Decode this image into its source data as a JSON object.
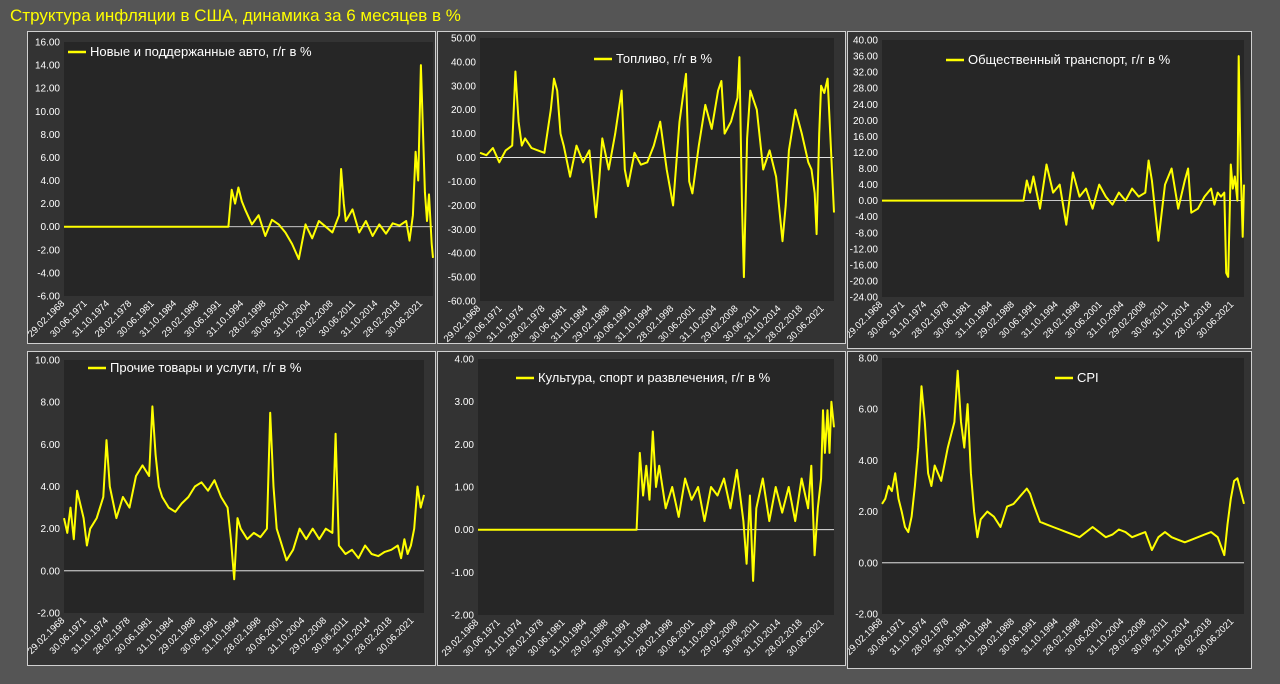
{
  "page_title": "Структура инфляции в США, динамика за 6 месяцев в %",
  "colors": {
    "background": "#555555",
    "panel": "#333333",
    "line": "#ffff00",
    "text": "#ffffff",
    "title": "#ffff00"
  },
  "chart_data": [
    {
      "type": "line",
      "legend": "Новые и поддержанные авто, г/г в %",
      "yticks": [
        -6,
        -4,
        -2,
        0,
        2,
        4,
        6,
        8,
        10,
        12,
        14,
        16
      ],
      "ylim": [
        -6,
        16
      ],
      "xticks": [
        "29.02.1968",
        "30.06.1971",
        "31.10.1974",
        "28.02.1978",
        "30.06.1981",
        "31.10.1984",
        "29.02.1988",
        "30.06.1991",
        "31.10.1994",
        "28.02.1998",
        "30.06.2001",
        "31.10.2004",
        "29.02.2008",
        "30.06.2011",
        "31.10.2014",
        "28.02.2018",
        "30.06.2021"
      ],
      "x": [
        1968.0,
        1992.5,
        1993.0,
        1993.5,
        1994.0,
        1994.5,
        1995.0,
        1996.0,
        1997.0,
        1998.0,
        1999.0,
        2000.0,
        2001.0,
        2002.0,
        2003.0,
        2004.0,
        2005.0,
        2006.0,
        2007.0,
        2008.0,
        2009.0,
        2009.3,
        2009.7,
        2010.0,
        2011.0,
        2012.0,
        2013.0,
        2014.0,
        2015.0,
        2016.0,
        2017.0,
        2018.0,
        2019.0,
        2019.5,
        2020.0,
        2020.4,
        2020.8,
        2021.2,
        2021.5,
        2021.8,
        2022.1,
        2022.4,
        2022.8,
        2023.0
      ],
      "y": [
        0.0,
        0.0,
        3.2,
        2.0,
        3.4,
        2.2,
        1.5,
        0.2,
        1.0,
        -0.8,
        0.6,
        0.2,
        -0.5,
        -1.5,
        -2.8,
        0.2,
        -1.0,
        0.5,
        0.0,
        -0.5,
        1.0,
        5.0,
        2.0,
        0.5,
        1.5,
        -0.5,
        0.5,
        -0.8,
        0.2,
        -0.6,
        0.3,
        0.1,
        0.5,
        -1.2,
        1.0,
        6.5,
        4.0,
        14.0,
        8.5,
        3.0,
        0.5,
        2.8,
        -1.5,
        -2.7
      ]
    },
    {
      "type": "line",
      "legend": "Топливо, г/г в %",
      "yticks": [
        -60,
        -50,
        -40,
        -30,
        -20,
        -10,
        0,
        10,
        20,
        30,
        40,
        50
      ],
      "ylim": [
        -60,
        50
      ],
      "xticks": [
        "29.02.1968",
        "30.06.1971",
        "31.10.1974",
        "28.02.1978",
        "30.06.1981",
        "31.10.1984",
        "29.02.1988",
        "30.06.1991",
        "31.10.1994",
        "28.02.1998",
        "30.06.2001",
        "31.10.2004",
        "29.02.2008",
        "30.06.2011",
        "31.10.2014",
        "28.02.2018",
        "30.06.2021"
      ],
      "x": [
        1968.0,
        1969.0,
        1970.0,
        1971.0,
        1972.0,
        1973.0,
        1973.5,
        1974.0,
        1974.5,
        1975.0,
        1976.0,
        1977.0,
        1978.0,
        1979.0,
        1979.5,
        1980.0,
        1980.5,
        1981.0,
        1982.0,
        1983.0,
        1984.0,
        1985.0,
        1986.0,
        1986.5,
        1987.0,
        1988.0,
        1989.0,
        1990.0,
        1990.5,
        1991.0,
        1992.0,
        1993.0,
        1994.0,
        1995.0,
        1996.0,
        1997.0,
        1998.0,
        1999.0,
        2000.0,
        2000.5,
        2001.0,
        2002.0,
        2003.0,
        2004.0,
        2005.0,
        2005.5,
        2006.0,
        2007.0,
        2008.0,
        2008.3,
        2008.7,
        2009.0,
        2009.5,
        2010.0,
        2011.0,
        2012.0,
        2013.0,
        2014.0,
        2015.0,
        2015.5,
        2016.0,
        2017.0,
        2018.0,
        2019.0,
        2019.5,
        2020.0,
        2020.3,
        2020.7,
        2021.0,
        2021.5,
        2022.0,
        2022.5,
        2023.0
      ],
      "y": [
        2.0,
        1.0,
        4.0,
        -2.0,
        3.0,
        5.0,
        36.0,
        15.0,
        5.0,
        8.0,
        4.0,
        3.0,
        2.0,
        20.0,
        33.0,
        28.0,
        10.0,
        5.0,
        -8.0,
        5.0,
        -2.0,
        3.0,
        -25.0,
        -10.0,
        8.0,
        -5.0,
        10.0,
        28.0,
        -5.0,
        -12.0,
        2.0,
        -3.0,
        -2.0,
        5.0,
        15.0,
        -5.0,
        -20.0,
        15.0,
        35.0,
        -10.0,
        -15.0,
        5.0,
        22.0,
        12.0,
        28.0,
        32.0,
        10.0,
        15.0,
        25.0,
        42.0,
        -20.0,
        -50.0,
        8.0,
        28.0,
        20.0,
        -5.0,
        3.0,
        -8.0,
        -35.0,
        -20.0,
        3.0,
        20.0,
        10.0,
        -2.0,
        -5.0,
        -15.0,
        -32.0,
        10.0,
        30.0,
        27.0,
        33.0,
        5.0,
        -23.0
      ]
    },
    {
      "type": "line",
      "legend": "Общественный транспорт, г/г в %",
      "yticks": [
        -24,
        -20,
        -16,
        -12,
        -8,
        -4,
        0,
        4,
        8,
        12,
        16,
        20,
        24,
        28,
        32,
        36,
        40
      ],
      "ylim": [
        -24,
        40
      ],
      "xticks": [
        "29.02.1968",
        "30.06.1971",
        "31.10.1974",
        "28.02.1978",
        "30.06.1981",
        "31.10.1984",
        "29.02.1988",
        "30.06.1991",
        "31.10.1994",
        "28.02.1998",
        "30.06.2001",
        "31.10.2004",
        "29.02.2008",
        "30.06.2011",
        "31.10.2014",
        "28.02.2018",
        "30.06.2021"
      ],
      "x": [
        1968.0,
        1989.5,
        1990.0,
        1990.5,
        1991.0,
        1992.0,
        1993.0,
        1994.0,
        1995.0,
        1996.0,
        1997.0,
        1998.0,
        1999.0,
        2000.0,
        2001.0,
        2002.0,
        2003.0,
        2004.0,
        2005.0,
        2006.0,
        2007.0,
        2008.0,
        2008.5,
        2009.0,
        2010.0,
        2011.0,
        2012.0,
        2013.0,
        2014.0,
        2014.5,
        2015.0,
        2016.0,
        2017.0,
        2018.0,
        2018.5,
        2019.0,
        2019.5,
        2020.0,
        2020.3,
        2020.6,
        2021.0,
        2021.3,
        2021.6,
        2022.0,
        2022.2,
        2022.5,
        2022.8,
        2023.0
      ],
      "y": [
        0.0,
        0.0,
        5.0,
        2.0,
        6.0,
        -2.0,
        9.0,
        2.0,
        4.0,
        -6.0,
        7.0,
        1.0,
        3.0,
        -2.0,
        4.0,
        1.0,
        -1.0,
        2.0,
        0.0,
        3.0,
        1.0,
        2.0,
        10.0,
        5.0,
        -10.0,
        4.0,
        8.0,
        -2.0,
        5.0,
        8.0,
        -3.0,
        -2.0,
        1.0,
        3.0,
        -1.0,
        2.0,
        1.0,
        2.0,
        -18.0,
        -19.0,
        9.0,
        3.0,
        6.0,
        0.0,
        36.0,
        8.0,
        -9.0,
        4.0
      ]
    },
    {
      "type": "line",
      "legend": "Прочие товары и услуги, г/г в %",
      "yticks": [
        -2,
        0,
        2,
        4,
        6,
        8,
        10
      ],
      "ylim": [
        -2,
        10
      ],
      "xticks": [
        "29.02.1968",
        "30.06.1971",
        "31.10.1974",
        "28.02.1978",
        "30.06.1981",
        "31.10.1984",
        "29.02.1988",
        "30.06.1991",
        "31.10.1994",
        "28.02.1998",
        "30.06.2001",
        "31.10.2004",
        "29.02.2008",
        "30.06.2011",
        "31.10.2014",
        "28.02.2018",
        "30.06.2021"
      ],
      "x": [
        1968.0,
        1968.5,
        1969.0,
        1969.5,
        1970.0,
        1971.0,
        1971.5,
        1972.0,
        1973.0,
        1974.0,
        1974.5,
        1975.0,
        1976.0,
        1977.0,
        1978.0,
        1979.0,
        1980.0,
        1981.0,
        1981.5,
        1982.0,
        1982.5,
        1983.0,
        1984.0,
        1985.0,
        1986.0,
        1987.0,
        1988.0,
        1989.0,
        1990.0,
        1991.0,
        1992.0,
        1993.0,
        1993.5,
        1994.0,
        1994.5,
        1995.0,
        1996.0,
        1997.0,
        1998.0,
        1999.0,
        1999.5,
        2000.0,
        2000.5,
        2001.0,
        2002.0,
        2003.0,
        2004.0,
        2005.0,
        2006.0,
        2007.0,
        2008.0,
        2009.0,
        2009.5,
        2010.0,
        2011.0,
        2012.0,
        2013.0,
        2014.0,
        2015.0,
        2016.0,
        2017.0,
        2018.0,
        2019.0,
        2019.5,
        2020.0,
        2020.5,
        2021.0,
        2021.5,
        2022.0,
        2022.5,
        2023.0
      ],
      "y": [
        2.5,
        1.8,
        3.0,
        1.5,
        3.8,
        2.5,
        1.2,
        2.0,
        2.5,
        3.5,
        6.2,
        4.0,
        2.5,
        3.5,
        3.0,
        4.5,
        5.0,
        4.5,
        7.8,
        5.5,
        4.0,
        3.5,
        3.0,
        2.8,
        3.2,
        3.5,
        4.0,
        4.2,
        3.8,
        4.3,
        3.5,
        3.0,
        1.5,
        -0.4,
        2.5,
        2.0,
        1.5,
        1.8,
        1.6,
        2.0,
        7.5,
        4.0,
        2.0,
        1.5,
        0.5,
        1.0,
        2.0,
        1.5,
        2.0,
        1.5,
        2.0,
        1.8,
        6.5,
        1.2,
        0.8,
        1.0,
        0.6,
        1.2,
        0.8,
        0.7,
        0.9,
        1.0,
        1.2,
        0.6,
        1.5,
        0.8,
        1.2,
        2.0,
        4.0,
        3.0,
        3.6
      ]
    },
    {
      "type": "line",
      "legend": "Культура, спорт и развлечения, г/г в %",
      "yticks": [
        -2,
        -1,
        0,
        1,
        2,
        3,
        4
      ],
      "ylim": [
        -2,
        4
      ],
      "xticks": [
        "29.02.1968",
        "30.06.1971",
        "31.10.1974",
        "28.02.1978",
        "30.06.1981",
        "31.10.1984",
        "29.02.1988",
        "30.06.1991",
        "31.10.1994",
        "28.02.1998",
        "30.06.2001",
        "31.10.2004",
        "29.02.2008",
        "30.06.2011",
        "31.10.2014",
        "28.02.2018",
        "30.06.2021"
      ],
      "x": [
        1968.0,
        1992.5,
        1993.0,
        1993.5,
        1994.0,
        1994.5,
        1995.0,
        1995.5,
        1996.0,
        1997.0,
        1998.0,
        1999.0,
        2000.0,
        2001.0,
        2002.0,
        2003.0,
        2004.0,
        2005.0,
        2006.0,
        2007.0,
        2008.0,
        2009.0,
        2009.5,
        2010.0,
        2010.5,
        2011.0,
        2012.0,
        2013.0,
        2014.0,
        2015.0,
        2016.0,
        2017.0,
        2018.0,
        2019.0,
        2019.5,
        2020.0,
        2020.5,
        2021.0,
        2021.3,
        2021.6,
        2022.0,
        2022.3,
        2022.6,
        2023.0
      ],
      "y": [
        0.0,
        0.0,
        1.8,
        0.8,
        1.5,
        0.7,
        2.3,
        1.0,
        1.5,
        0.5,
        1.0,
        0.3,
        1.2,
        0.7,
        1.0,
        0.2,
        1.0,
        0.8,
        1.2,
        0.5,
        1.4,
        0.2,
        -0.8,
        0.8,
        -1.2,
        0.5,
        1.2,
        0.2,
        1.0,
        0.4,
        1.0,
        0.2,
        1.2,
        0.5,
        1.5,
        -0.6,
        0.5,
        1.2,
        2.8,
        1.8,
        2.8,
        1.8,
        3.0,
        2.4
      ]
    },
    {
      "type": "line",
      "legend": "CPI",
      "yticks": [
        -2,
        0,
        2,
        4,
        6,
        8
      ],
      "ylim": [
        -2,
        8
      ],
      "xticks": [
        "29.02.1968",
        "30.06.1971",
        "31.10.1974",
        "28.02.1978",
        "30.06.1981",
        "31.10.1984",
        "29.02.1988",
        "30.06.1991",
        "31.10.1994",
        "28.02.1998",
        "30.06.2001",
        "31.10.2004",
        "29.02.2008",
        "30.06.2011",
        "31.10.2014",
        "28.02.2018",
        "30.06.2021"
      ],
      "x": [
        1968.0,
        1968.5,
        1969.0,
        1969.5,
        1970.0,
        1970.5,
        1971.0,
        1971.5,
        1972.0,
        1972.5,
        1973.0,
        1973.5,
        1974.0,
        1974.5,
        1975.0,
        1975.5,
        1976.0,
        1977.0,
        1978.0,
        1978.5,
        1979.0,
        1979.5,
        1980.0,
        1980.5,
        1981.0,
        1981.5,
        1982.0,
        1982.5,
        1983.0,
        1984.0,
        1985.0,
        1986.0,
        1987.0,
        1988.0,
        1989.0,
        1990.0,
        1990.5,
        1991.0,
        1992.0,
        1993.0,
        1994.0,
        1995.0,
        1996.0,
        1997.0,
        1998.0,
        1999.0,
        2000.0,
        2001.0,
        2002.0,
        2003.0,
        2004.0,
        2005.0,
        2006.0,
        2007.0,
        2008.0,
        2009.0,
        2010.0,
        2011.0,
        2012.0,
        2013.0,
        2014.0,
        2015.0,
        2016.0,
        2017.0,
        2018.0,
        2019.0,
        2020.0,
        2020.5,
        2021.0,
        2021.5,
        2022.0,
        2022.5,
        2023.0
      ],
      "y": [
        2.3,
        2.5,
        3.0,
        2.8,
        3.5,
        2.5,
        2.0,
        1.4,
        1.2,
        1.8,
        3.0,
        4.5,
        6.9,
        5.5,
        3.5,
        3.0,
        3.8,
        3.2,
        4.5,
        5.0,
        5.5,
        7.5,
        5.5,
        4.5,
        6.2,
        3.5,
        2.0,
        1.0,
        1.7,
        2.0,
        1.8,
        1.4,
        2.2,
        2.3,
        2.6,
        2.9,
        2.7,
        2.3,
        1.6,
        1.5,
        1.4,
        1.3,
        1.2,
        1.1,
        1.0,
        1.2,
        1.4,
        1.2,
        1.0,
        1.1,
        1.3,
        1.2,
        1.0,
        1.1,
        1.2,
        0.5,
        1.0,
        1.2,
        1.0,
        0.9,
        0.8,
        0.9,
        1.0,
        1.1,
        1.2,
        1.0,
        0.3,
        1.5,
        2.5,
        3.2,
        3.3,
        2.8,
        2.3
      ]
    }
  ]
}
